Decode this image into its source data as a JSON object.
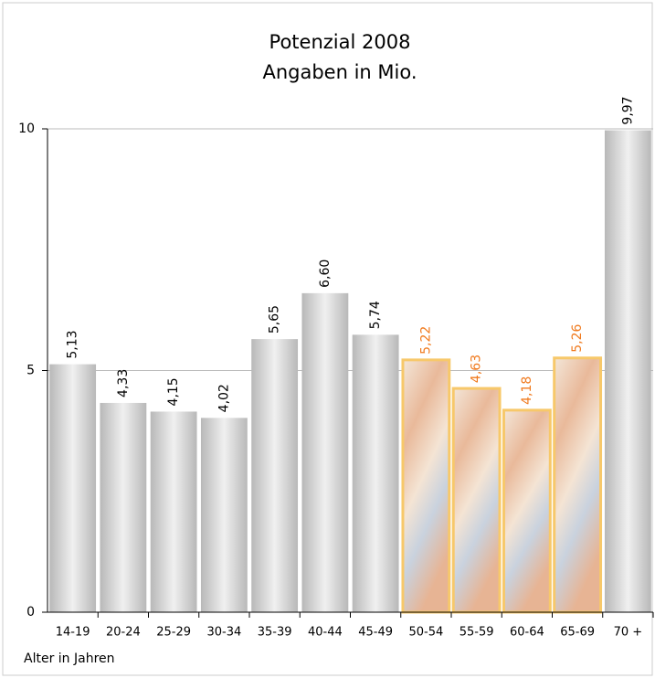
{
  "chart_data": {
    "type": "bar",
    "title": "Potenzial 2008",
    "subtitle": "Angaben in Mio.",
    "x_label": "Alter in Jahren",
    "categories": [
      "14-19",
      "20-24",
      "25-29",
      "30-34",
      "35-39",
      "40-44",
      "45-49",
      "50-54",
      "55-59",
      "60-64",
      "65-69",
      "70 +"
    ],
    "values": [
      5.13,
      4.33,
      4.15,
      4.02,
      5.65,
      6.6,
      5.74,
      5.22,
      4.63,
      4.18,
      5.26,
      9.97
    ],
    "value_labels": [
      "5,13",
      "4,33",
      "4,15",
      "4,02",
      "5,65",
      "6,60",
      "5,74",
      "5,22",
      "4,63",
      "4,18",
      "5,26",
      "9,97"
    ],
    "colors": [
      "#c8c8c8",
      "#c8c8c8",
      "#c8c8c8",
      "#c8c8c8",
      "#c8c8c8",
      "#c8c8c8",
      "#c8c8c8",
      "#f7c86a",
      "#f7c86a",
      "#f7c86a",
      "#f7c86a",
      "#c8c8c8"
    ],
    "label_colors": [
      "#000000",
      "#000000",
      "#000000",
      "#000000",
      "#000000",
      "#000000",
      "#000000",
      "#f07a1e",
      "#f07a1e",
      "#f07a1e",
      "#f07a1e",
      "#000000"
    ],
    "ylim": [
      0,
      10
    ],
    "yticks": [
      0,
      5,
      10
    ],
    "grid": true
  }
}
